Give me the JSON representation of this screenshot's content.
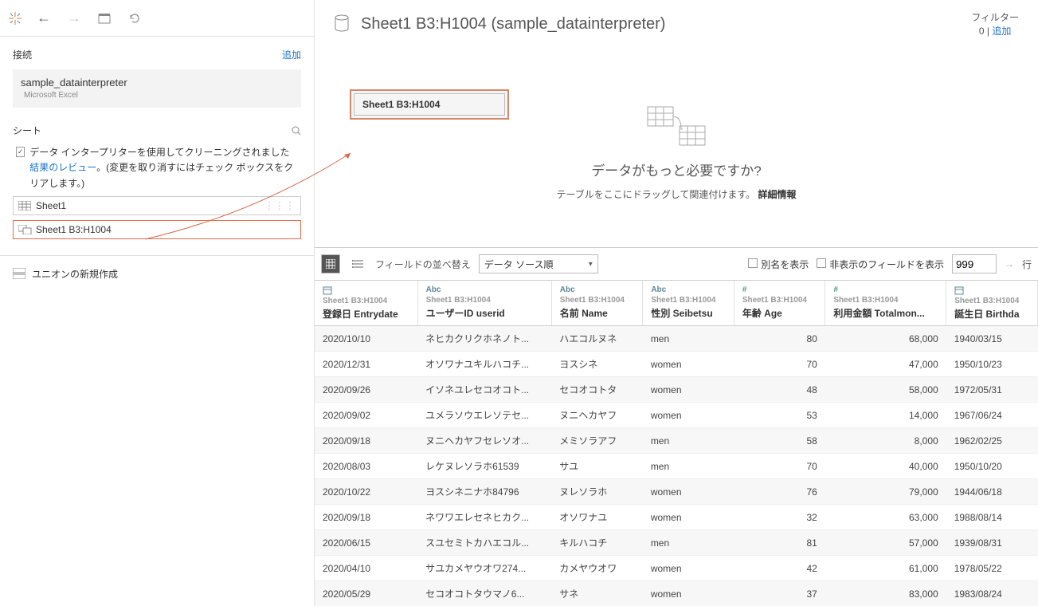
{
  "toolbar": {
    "back": "←",
    "forward": "→"
  },
  "conn": {
    "headLabel": "接続",
    "addLabel": "追加",
    "name": "sample_datainterpreter",
    "type": "Microsoft Excel"
  },
  "sheets": {
    "headLabel": "シート",
    "cleanerText1": "データ インタープリターを使用してクリーニングされました",
    "reviewLink": "結果のレビュー",
    "cleanerText2": "。(変更を取り消すにはチェック ボックスをクリアします。)",
    "item1": "Sheet1",
    "item2": "Sheet1 B3:H1004"
  },
  "union": {
    "label": "ユニオンの新規作成"
  },
  "rightHeader": {
    "title": "Sheet1 B3:H1004 (sample_datainterpreter)",
    "filterLabel": "フィルター",
    "filterCount": "0",
    "filterAdd": "追加"
  },
  "canvas": {
    "pill": "Sheet1 B3:H1004",
    "needMore": "データがもっと必要ですか?",
    "dragHint": "テーブルをここにドラッグして関連付けます。",
    "moreInfo": "詳細情報"
  },
  "gridTb": {
    "sortLabel": "フィールドの並べ替え",
    "sortValue": "データ ソース順",
    "showAlias": "別名を表示",
    "showHidden": "非表示のフィールドを表示",
    "rowCount": "999",
    "rowLabel": "行"
  },
  "columns": [
    {
      "type": "date",
      "src": "Sheet1 B3:H1004",
      "name": "登録日 Entrydate"
    },
    {
      "type": "Abc",
      "src": "Sheet1 B3:H1004",
      "name": "ユーザーID userid"
    },
    {
      "type": "Abc",
      "src": "Sheet1 B3:H1004",
      "name": "名前 Name"
    },
    {
      "type": "Abc",
      "src": "Sheet1 B3:H1004",
      "name": "性別 Seibetsu"
    },
    {
      "type": "#",
      "src": "Sheet1 B3:H1004",
      "name": "年齢 Age",
      "num": true
    },
    {
      "type": "#",
      "src": "Sheet1 B3:H1004",
      "name": "利用金額 Totalmon...",
      "num": true
    },
    {
      "type": "date",
      "src": "Sheet1 B3:H1004",
      "name": "誕生日 Birthda"
    }
  ],
  "rows": [
    [
      "2020/10/10",
      "ネヒカクリクホネノト...",
      "ハエコルヌネ",
      "men",
      "80",
      "68,000",
      "1940/03/15"
    ],
    [
      "2020/12/31",
      "オソワナユキルハコチ...",
      "ヨスシネ",
      "women",
      "70",
      "47,000",
      "1950/10/23"
    ],
    [
      "2020/09/26",
      "イソネユレセコオコト...",
      "セコオコトタ",
      "women",
      "48",
      "58,000",
      "1972/05/31"
    ],
    [
      "2020/09/02",
      "ユメラソウエレソテセ...",
      "ヌニヘカヤフ",
      "women",
      "53",
      "14,000",
      "1967/06/24"
    ],
    [
      "2020/09/18",
      "ヌニヘカヤフセレソオ...",
      "メミソラアフ",
      "men",
      "58",
      "8,000",
      "1962/02/25"
    ],
    [
      "2020/08/03",
      "レケヌレソラホ61539",
      "サユ",
      "men",
      "70",
      "40,000",
      "1950/10/20"
    ],
    [
      "2020/10/22",
      "ヨスシネニナホ84796",
      "ヌレソラホ",
      "women",
      "76",
      "79,000",
      "1944/06/18"
    ],
    [
      "2020/09/18",
      "ネワワエレセネヒカク...",
      "オソワナユ",
      "women",
      "32",
      "63,000",
      "1988/08/14"
    ],
    [
      "2020/06/15",
      "スユセミトカハエコル...",
      "キルハコチ",
      "men",
      "81",
      "57,000",
      "1939/08/31"
    ],
    [
      "2020/04/10",
      "サユカメヤウオワ274...",
      "カメヤウオワ",
      "women",
      "42",
      "61,000",
      "1978/05/22"
    ],
    [
      "2020/05/29",
      "セコオコトタウマノ6...",
      "サネ",
      "women",
      "37",
      "83,000",
      "1983/08/24"
    ]
  ]
}
